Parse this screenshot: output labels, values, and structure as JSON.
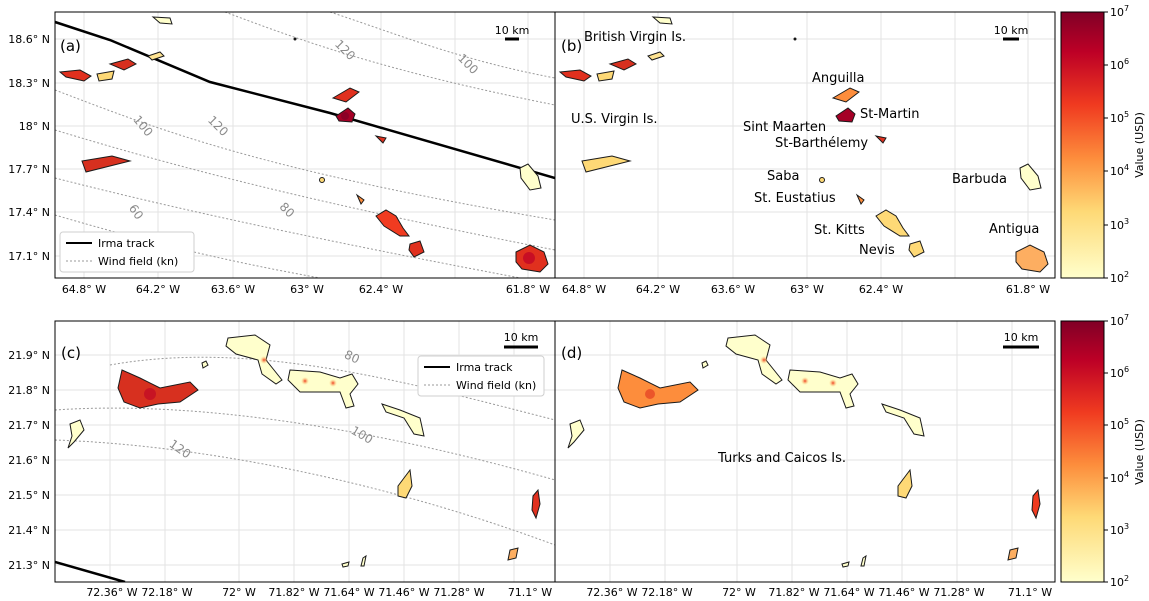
{
  "colors": {
    "track": "#000000",
    "contour": "#9a9a9a",
    "land_low": "#ffffcc",
    "land_mid": "#fd8d3c",
    "land_high": "#bd0026",
    "land_max": "#800026",
    "grid": "#e3e3e3"
  },
  "colorbar": {
    "label": "Value (USD)",
    "ticks": [
      {
        "base": "10",
        "exp": "7"
      },
      {
        "base": "10",
        "exp": "6"
      },
      {
        "base": "10",
        "exp": "5"
      },
      {
        "base": "10",
        "exp": "4"
      },
      {
        "base": "10",
        "exp": "3"
      },
      {
        "base": "10",
        "exp": "2"
      }
    ]
  },
  "panels": {
    "a": {
      "letter": "(a)",
      "scalebar": "10 km",
      "yticks": [
        "18.6° N",
        "18.3° N",
        "18° N",
        "17.7° N",
        "17.4° N",
        "17.1° N"
      ],
      "xticks": [
        "64.8° W",
        "64.2° W",
        "63.6° W",
        "63° W",
        "62.4° W",
        "61.8° W"
      ],
      "contour_labels": [
        "120",
        "100",
        "100",
        "120",
        "80",
        "60"
      ],
      "legend": {
        "track": "Irma track",
        "wind": "Wind field (kn)"
      }
    },
    "b": {
      "letter": "(b)",
      "scalebar": "10 km",
      "xticks": [
        "64.8° W",
        "64.2° W",
        "63.6° W",
        "63° W",
        "62.4° W",
        "61.8° W"
      ],
      "places": [
        "British Virgin Is.",
        "Anguilla",
        "U.S. Virgin Is.",
        "St-Martin",
        "Sint Maarten",
        "St-Barthélemy",
        "Saba",
        "Barbuda",
        "St. Eustatius",
        "St. Kitts",
        "Antigua",
        "Nevis"
      ]
    },
    "c": {
      "letter": "(c)",
      "scalebar": "10 km",
      "yticks": [
        "21.9° N",
        "21.8° N",
        "21.7° N",
        "21.6° N",
        "21.5° N",
        "21.4° N",
        "21.3° N"
      ],
      "xticks": [
        "72.36° W",
        "72.18° W",
        "72° W",
        "71.82° W",
        "71.64° W",
        "71.46° W",
        "71.28° W",
        "71.1° W"
      ],
      "contour_labels": [
        "80",
        "100",
        "120"
      ],
      "legend": {
        "track": "Irma track",
        "wind": "Wind field (kn)"
      }
    },
    "d": {
      "letter": "(d)",
      "scalebar": "10 km",
      "xticks": [
        "72.36° W",
        "72.18° W",
        "72° W",
        "71.82° W",
        "71.64° W",
        "71.46° W",
        "71.28° W",
        "71.1° W"
      ],
      "places": [
        "Turks and Caicos Is."
      ]
    }
  }
}
